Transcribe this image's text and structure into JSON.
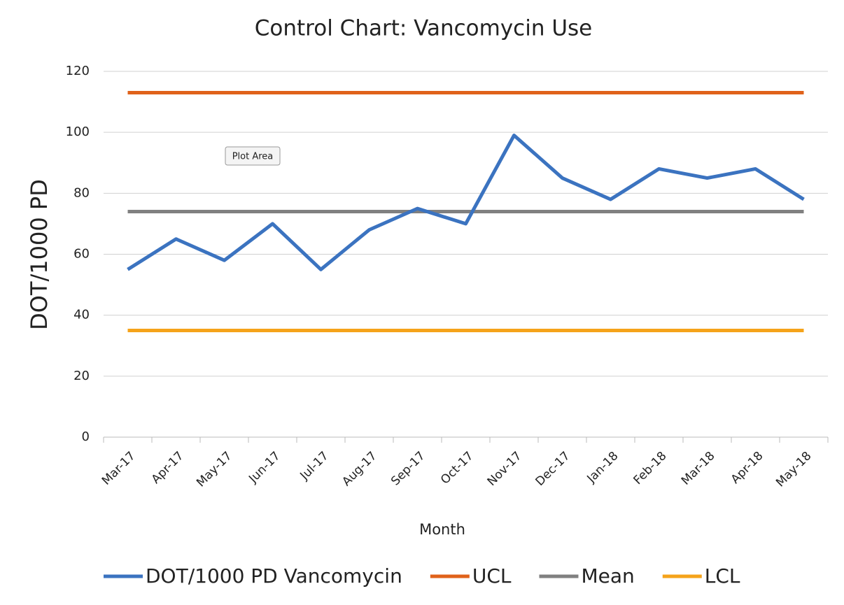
{
  "chart_data": {
    "type": "line",
    "title": "Control Chart: Vancomycin Use",
    "x_label": "Month",
    "y_label": "DOT/1000 PD",
    "annotation": "Plot Area",
    "categories": [
      "Mar-17",
      "Apr-17",
      "May-17",
      "Jun-17",
      "Jul-17",
      "Aug-17",
      "Sep-17",
      "Oct-17",
      "Nov-17",
      "Dec-17",
      "Jan-18",
      "Feb-18",
      "Mar-18",
      "Apr-18",
      "May-18"
    ],
    "series": [
      {
        "name": "DOT/1000 PD Vancomycin",
        "color": "#3b73c0",
        "values": [
          55,
          65,
          58,
          70,
          55,
          68,
          75,
          70,
          99,
          85,
          78,
          88,
          85,
          88,
          78
        ]
      },
      {
        "name": "UCL",
        "color": "#e0621a",
        "values": [
          113,
          113,
          113,
          113,
          113,
          113,
          113,
          113,
          113,
          113,
          113,
          113,
          113,
          113,
          113
        ]
      },
      {
        "name": "Mean",
        "color": "#808080",
        "values": [
          74,
          74,
          74,
          74,
          74,
          74,
          74,
          74,
          74,
          74,
          74,
          74,
          74,
          74,
          74
        ]
      },
      {
        "name": "LCL",
        "color": "#f5a31a",
        "values": [
          35,
          35,
          35,
          35,
          35,
          35,
          35,
          35,
          35,
          35,
          35,
          35,
          35,
          35,
          35
        ]
      }
    ],
    "ylim": [
      0,
      120
    ],
    "yticks": [
      0,
      20,
      40,
      60,
      80,
      100,
      120
    ],
    "grid": true,
    "legend": "bottom"
  }
}
